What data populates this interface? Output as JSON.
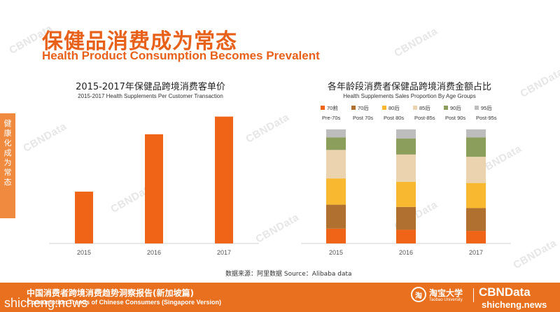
{
  "header": {
    "title_zh": "保健品消费成为常态",
    "title_en": "Health Product Consumption Becomes Prevalent"
  },
  "side_tab": {
    "text": "健康化成为常态"
  },
  "watermark_text": "CBNData",
  "colors": {
    "accent": "#e8611a",
    "bar": "#f06418",
    "footer": "#e8701e"
  },
  "chart_data": [
    {
      "type": "bar",
      "title": "2015-2017年保健品跨境消费客单价",
      "subtitle": "2015-2017 Health Supplements Per Customer Transaction",
      "categories": [
        "2015",
        "2016",
        "2017"
      ],
      "values": [
        0.38,
        0.8,
        0.93
      ],
      "ylim": [
        0,
        1
      ],
      "grid": false,
      "color": "#f06418"
    },
    {
      "type": "bar",
      "stacked": true,
      "normalized": true,
      "title": "各年龄段消费者保健品跨境消费金额占比",
      "subtitle": "Health Supplements Sales Proportion By Age Groups",
      "categories": [
        "2015",
        "2016",
        "2017"
      ],
      "legend_position": "top",
      "series": [
        {
          "name": "70前",
          "name_en": "Pre-70s",
          "color": "#f06418",
          "values": [
            0.13,
            0.12,
            0.11
          ]
        },
        {
          "name": "70后",
          "name_en": "Post 70s",
          "color": "#b07030",
          "values": [
            0.21,
            0.2,
            0.2
          ]
        },
        {
          "name": "80后",
          "name_en": "Post 80s",
          "color": "#f8b830",
          "values": [
            0.23,
            0.22,
            0.22
          ]
        },
        {
          "name": "85后",
          "name_en": "Post-85s",
          "color": "#ebd3b0",
          "values": [
            0.25,
            0.24,
            0.23
          ]
        },
        {
          "name": "90后",
          "name_en": "Post 90s",
          "color": "#8c9e5c",
          "values": [
            0.11,
            0.14,
            0.17
          ]
        },
        {
          "name": "95后",
          "name_en": "Post-95s",
          "color": "#bdbdbd",
          "values": [
            0.07,
            0.08,
            0.07
          ]
        }
      ]
    }
  ],
  "source": {
    "label": "数据来源：阿里数据 Source：",
    "value": "Alibaba data"
  },
  "footer": {
    "title_zh": "中国消费者跨境消费趋势洞察报告(新加坡篇)",
    "subtitle_en": "Consumption Trends of Chinese Consumers (Singapore Version)",
    "watermark": "shicheng.news",
    "logo1_zh": "淘宝大学",
    "logo1_en": "Taobao University",
    "logo2": "CBNData",
    "site": "shicheng.news"
  }
}
